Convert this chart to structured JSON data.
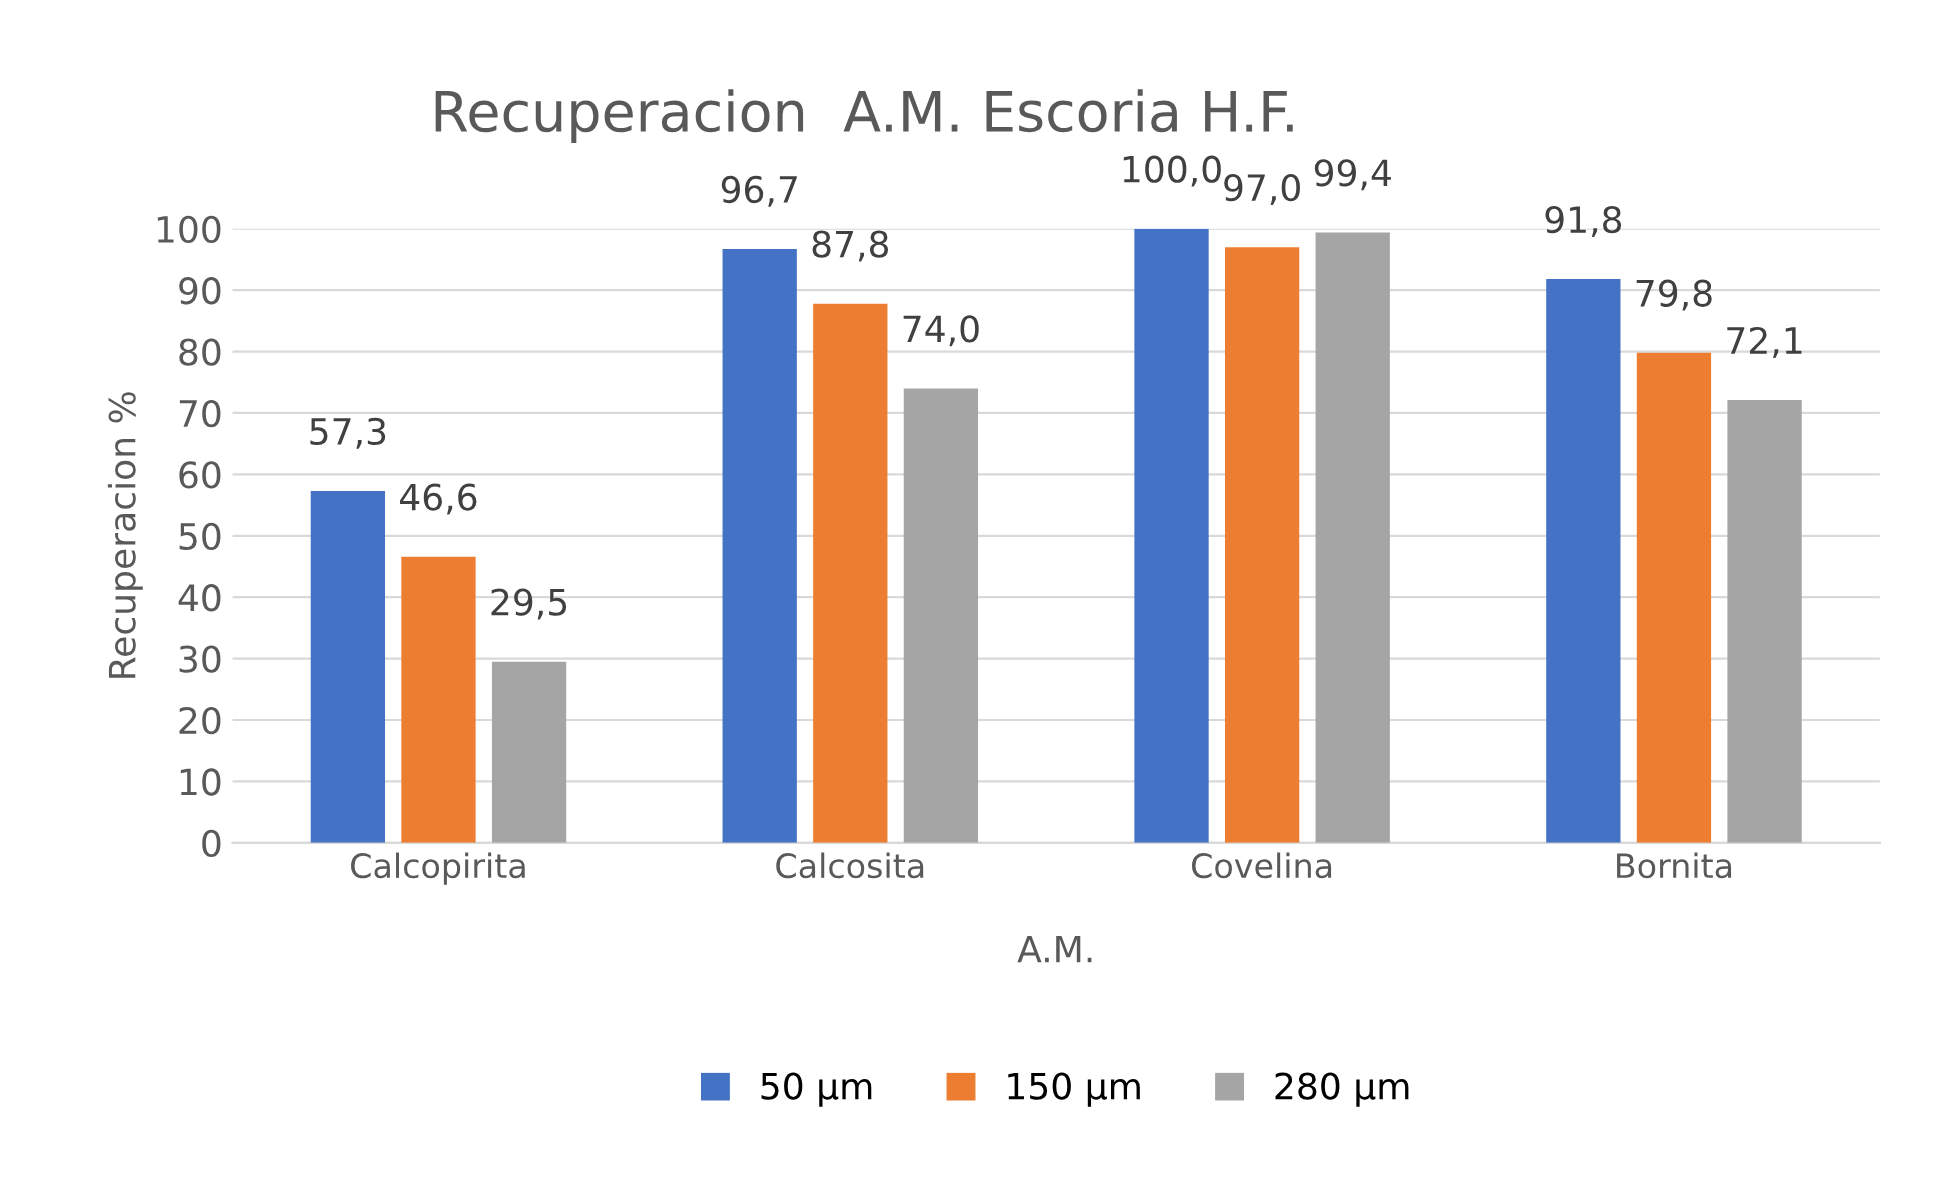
{
  "chart_data": {
    "type": "bar",
    "title": "Recuperacion  A.M. Escoria H.F.",
    "xlabel": "A.M.",
    "ylabel": "Recuperacion %",
    "categories": [
      "Calcopirita",
      "Calcosita",
      "Covelina",
      "Bornita"
    ],
    "series": [
      {
        "name": "50 µm",
        "color": "#4472c4",
        "values": [
          57.3,
          96.7,
          100.0,
          91.8
        ],
        "value_labels": [
          "57,3",
          "96,7",
          "100,0",
          "91,8"
        ]
      },
      {
        "name": "150 µm",
        "color": "#ed7d31",
        "values": [
          46.6,
          87.8,
          97.0,
          79.8
        ],
        "value_labels": [
          "46,6",
          "87,8",
          "97,0",
          "79,8"
        ]
      },
      {
        "name": "280 µm",
        "color": "#a5a5a5",
        "values": [
          29.5,
          74.0,
          99.4,
          72.1
        ],
        "value_labels": [
          "29,5",
          "74,0",
          "99,4",
          "72,1"
        ]
      }
    ],
    "ylim": [
      0,
      100
    ],
    "yticks": [
      0,
      10,
      20,
      30,
      40,
      50,
      60,
      70,
      80,
      90,
      100
    ],
    "grid": "y",
    "legend": "bottom"
  }
}
